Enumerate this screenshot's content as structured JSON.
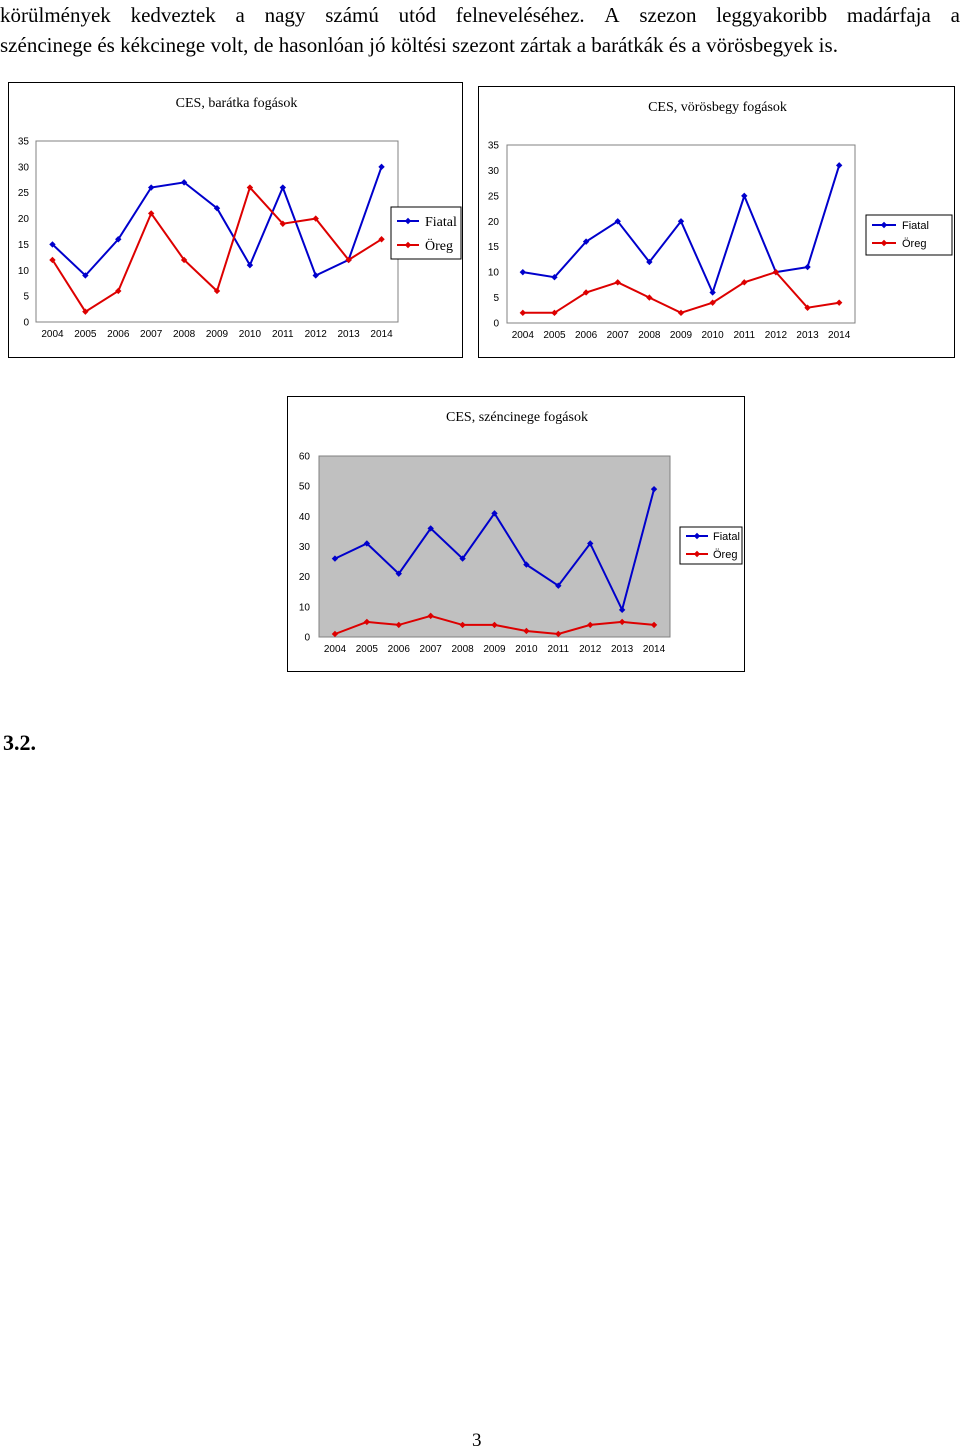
{
  "intro": {
    "line1": [
      "körülmények",
      "kedveztek",
      "a",
      "nagy",
      "számú",
      "utód",
      "felneveléséhez.",
      "A",
      "szezon",
      "leggyakoribb",
      "madárfaja",
      "a"
    ],
    "line2": "széncinege és kékcinege volt, de hasonlóan jó költési szezont zártak a barátkák és a vörösbegyek is."
  },
  "charts": {
    "baratka": {
      "title": "CES, barátka fogások"
    },
    "vorosbegy": {
      "title": "CES, vörösbegy fogások"
    },
    "szencinege": {
      "title": "CES, széncinege fogások"
    }
  },
  "section_heading": "3.2.",
  "page_number": "3",
  "colors": {
    "fiatal": "#0000cc",
    "oreg": "#dd0000",
    "plot_bg": "#c0c0c0"
  },
  "chart_data": [
    {
      "type": "line",
      "title": "CES, barátka fogások",
      "xlabel": "",
      "ylabel": "",
      "categories": [
        "2004",
        "2005",
        "2006",
        "2007",
        "2008",
        "2009",
        "2010",
        "2011",
        "2012",
        "2013",
        "2014"
      ],
      "ylim": [
        0,
        35
      ],
      "yticks": [
        "0",
        "5",
        "10",
        "15",
        "20",
        "25",
        "30",
        "35"
      ],
      "grid": false,
      "legend": "right",
      "series": [
        {
          "name": "Fiatal",
          "color": "#0000cc",
          "values": [
            15,
            9,
            16,
            26,
            27,
            22,
            11,
            26,
            9,
            12,
            30
          ]
        },
        {
          "name": "Öreg",
          "color": "#dd0000",
          "values": [
            12,
            2,
            6,
            21,
            12,
            6,
            26,
            19,
            20,
            12,
            16
          ]
        }
      ]
    },
    {
      "type": "line",
      "title": "CES, vörösbegy fogások",
      "xlabel": "",
      "ylabel": "",
      "categories": [
        "2004",
        "2005",
        "2006",
        "2007",
        "2008",
        "2009",
        "2010",
        "2011",
        "2012",
        "2013",
        "2014"
      ],
      "ylim": [
        0,
        35
      ],
      "yticks": [
        "0",
        "5",
        "10",
        "15",
        "20",
        "25",
        "30",
        "35"
      ],
      "grid": false,
      "legend": "right",
      "series": [
        {
          "name": "Fiatal",
          "color": "#0000cc",
          "values": [
            10,
            9,
            16,
            20,
            12,
            20,
            6,
            25,
            10,
            11,
            31
          ]
        },
        {
          "name": "Öreg",
          "color": "#dd0000",
          "values": [
            2,
            2,
            6,
            8,
            5,
            2,
            4,
            8,
            10,
            3,
            4
          ]
        }
      ]
    },
    {
      "type": "line",
      "title": "CES, széncinege fogások",
      "xlabel": "",
      "ylabel": "",
      "categories": [
        "2004",
        "2005",
        "2006",
        "2007",
        "2008",
        "2009",
        "2010",
        "2011",
        "2012",
        "2013",
        "2014"
      ],
      "ylim": [
        0,
        60
      ],
      "yticks": [
        "0",
        "10",
        "20",
        "30",
        "40",
        "50",
        "60"
      ],
      "grid": false,
      "legend": "right",
      "series": [
        {
          "name": "Fiatal",
          "color": "#0000cc",
          "values": [
            26,
            31,
            21,
            36,
            26,
            41,
            24,
            17,
            31,
            9,
            49
          ]
        },
        {
          "name": "Öreg",
          "color": "#dd0000",
          "values": [
            1,
            5,
            4,
            7,
            4,
            4,
            2,
            1,
            4,
            5,
            4
          ]
        }
      ]
    }
  ]
}
